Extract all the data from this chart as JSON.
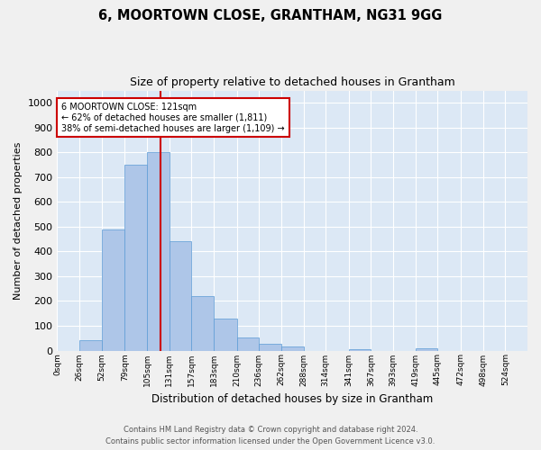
{
  "title": "6, MOORTOWN CLOSE, GRANTHAM, NG31 9GG",
  "subtitle": "Size of property relative to detached houses in Grantham",
  "xlabel": "Distribution of detached houses by size in Grantham",
  "ylabel": "Number of detached properties",
  "bar_labels": [
    "0sqm",
    "26sqm",
    "52sqm",
    "79sqm",
    "105sqm",
    "131sqm",
    "157sqm",
    "183sqm",
    "210sqm",
    "236sqm",
    "262sqm",
    "288sqm",
    "314sqm",
    "341sqm",
    "367sqm",
    "393sqm",
    "419sqm",
    "445sqm",
    "472sqm",
    "498sqm",
    "524sqm"
  ],
  "bar_values": [
    0,
    43,
    490,
    752,
    800,
    440,
    220,
    130,
    52,
    28,
    15,
    0,
    0,
    6,
    0,
    0,
    8,
    0,
    0,
    0,
    0
  ],
  "bar_color": "#aec6e8",
  "bar_edge_color": "#5b9bd5",
  "background_color": "#dce8f5",
  "grid_color": "#ffffff",
  "property_line_x": 121,
  "property_line_color": "#cc0000",
  "annotation_text": "6 MOORTOWN CLOSE: 121sqm\n← 62% of detached houses are smaller (1,811)\n38% of semi-detached houses are larger (1,109) →",
  "annotation_box_color": "#ffffff",
  "annotation_box_edge_color": "#cc0000",
  "ylim": [
    0,
    1050
  ],
  "yticks": [
    0,
    100,
    200,
    300,
    400,
    500,
    600,
    700,
    800,
    900,
    1000
  ],
  "footer_line1": "Contains HM Land Registry data © Crown copyright and database right 2024.",
  "footer_line2": "Contains public sector information licensed under the Open Government Licence v3.0.",
  "bin_edges": [
    0,
    26,
    52,
    79,
    105,
    131,
    157,
    183,
    210,
    236,
    262,
    288,
    314,
    341,
    367,
    393,
    419,
    445,
    472,
    498,
    524,
    550
  ]
}
